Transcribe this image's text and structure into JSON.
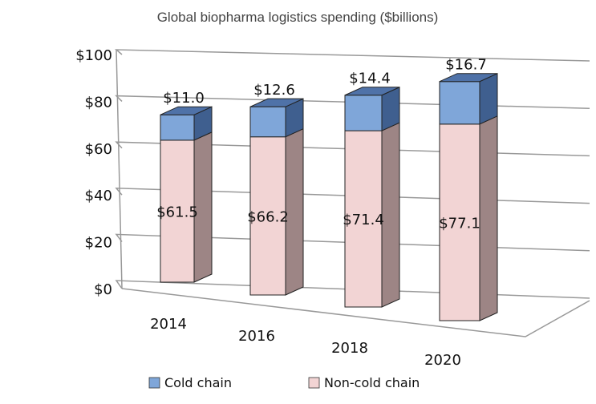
{
  "chart_data": {
    "type": "bar",
    "stacked": true,
    "style": "3d",
    "title": "Global biopharma logistics spending ($billions)",
    "xlabel": "",
    "ylabel": "",
    "categories": [
      "2014",
      "2016",
      "2018",
      "2020"
    ],
    "series": [
      {
        "name": "Non-cold chain",
        "values": [
          61.5,
          66.2,
          71.4,
          77.1
        ],
        "labels": [
          "$61.5",
          "$66.2",
          "$71.4",
          "$77.1"
        ],
        "color": "#f2d4d4"
      },
      {
        "name": "Cold chain",
        "values": [
          11.0,
          12.6,
          14.4,
          16.7
        ],
        "labels": [
          "$11.0",
          "$12.6",
          "$14.4",
          "$16.7"
        ],
        "color": "#7fa6d9"
      }
    ],
    "yticks": [
      "$0",
      "$20",
      "$40",
      "$60",
      "$80",
      "$100"
    ],
    "ytick_values": [
      0,
      20,
      40,
      60,
      80,
      100
    ],
    "ylim": [
      0,
      100
    ],
    "grid": true,
    "legend": "bottom"
  }
}
